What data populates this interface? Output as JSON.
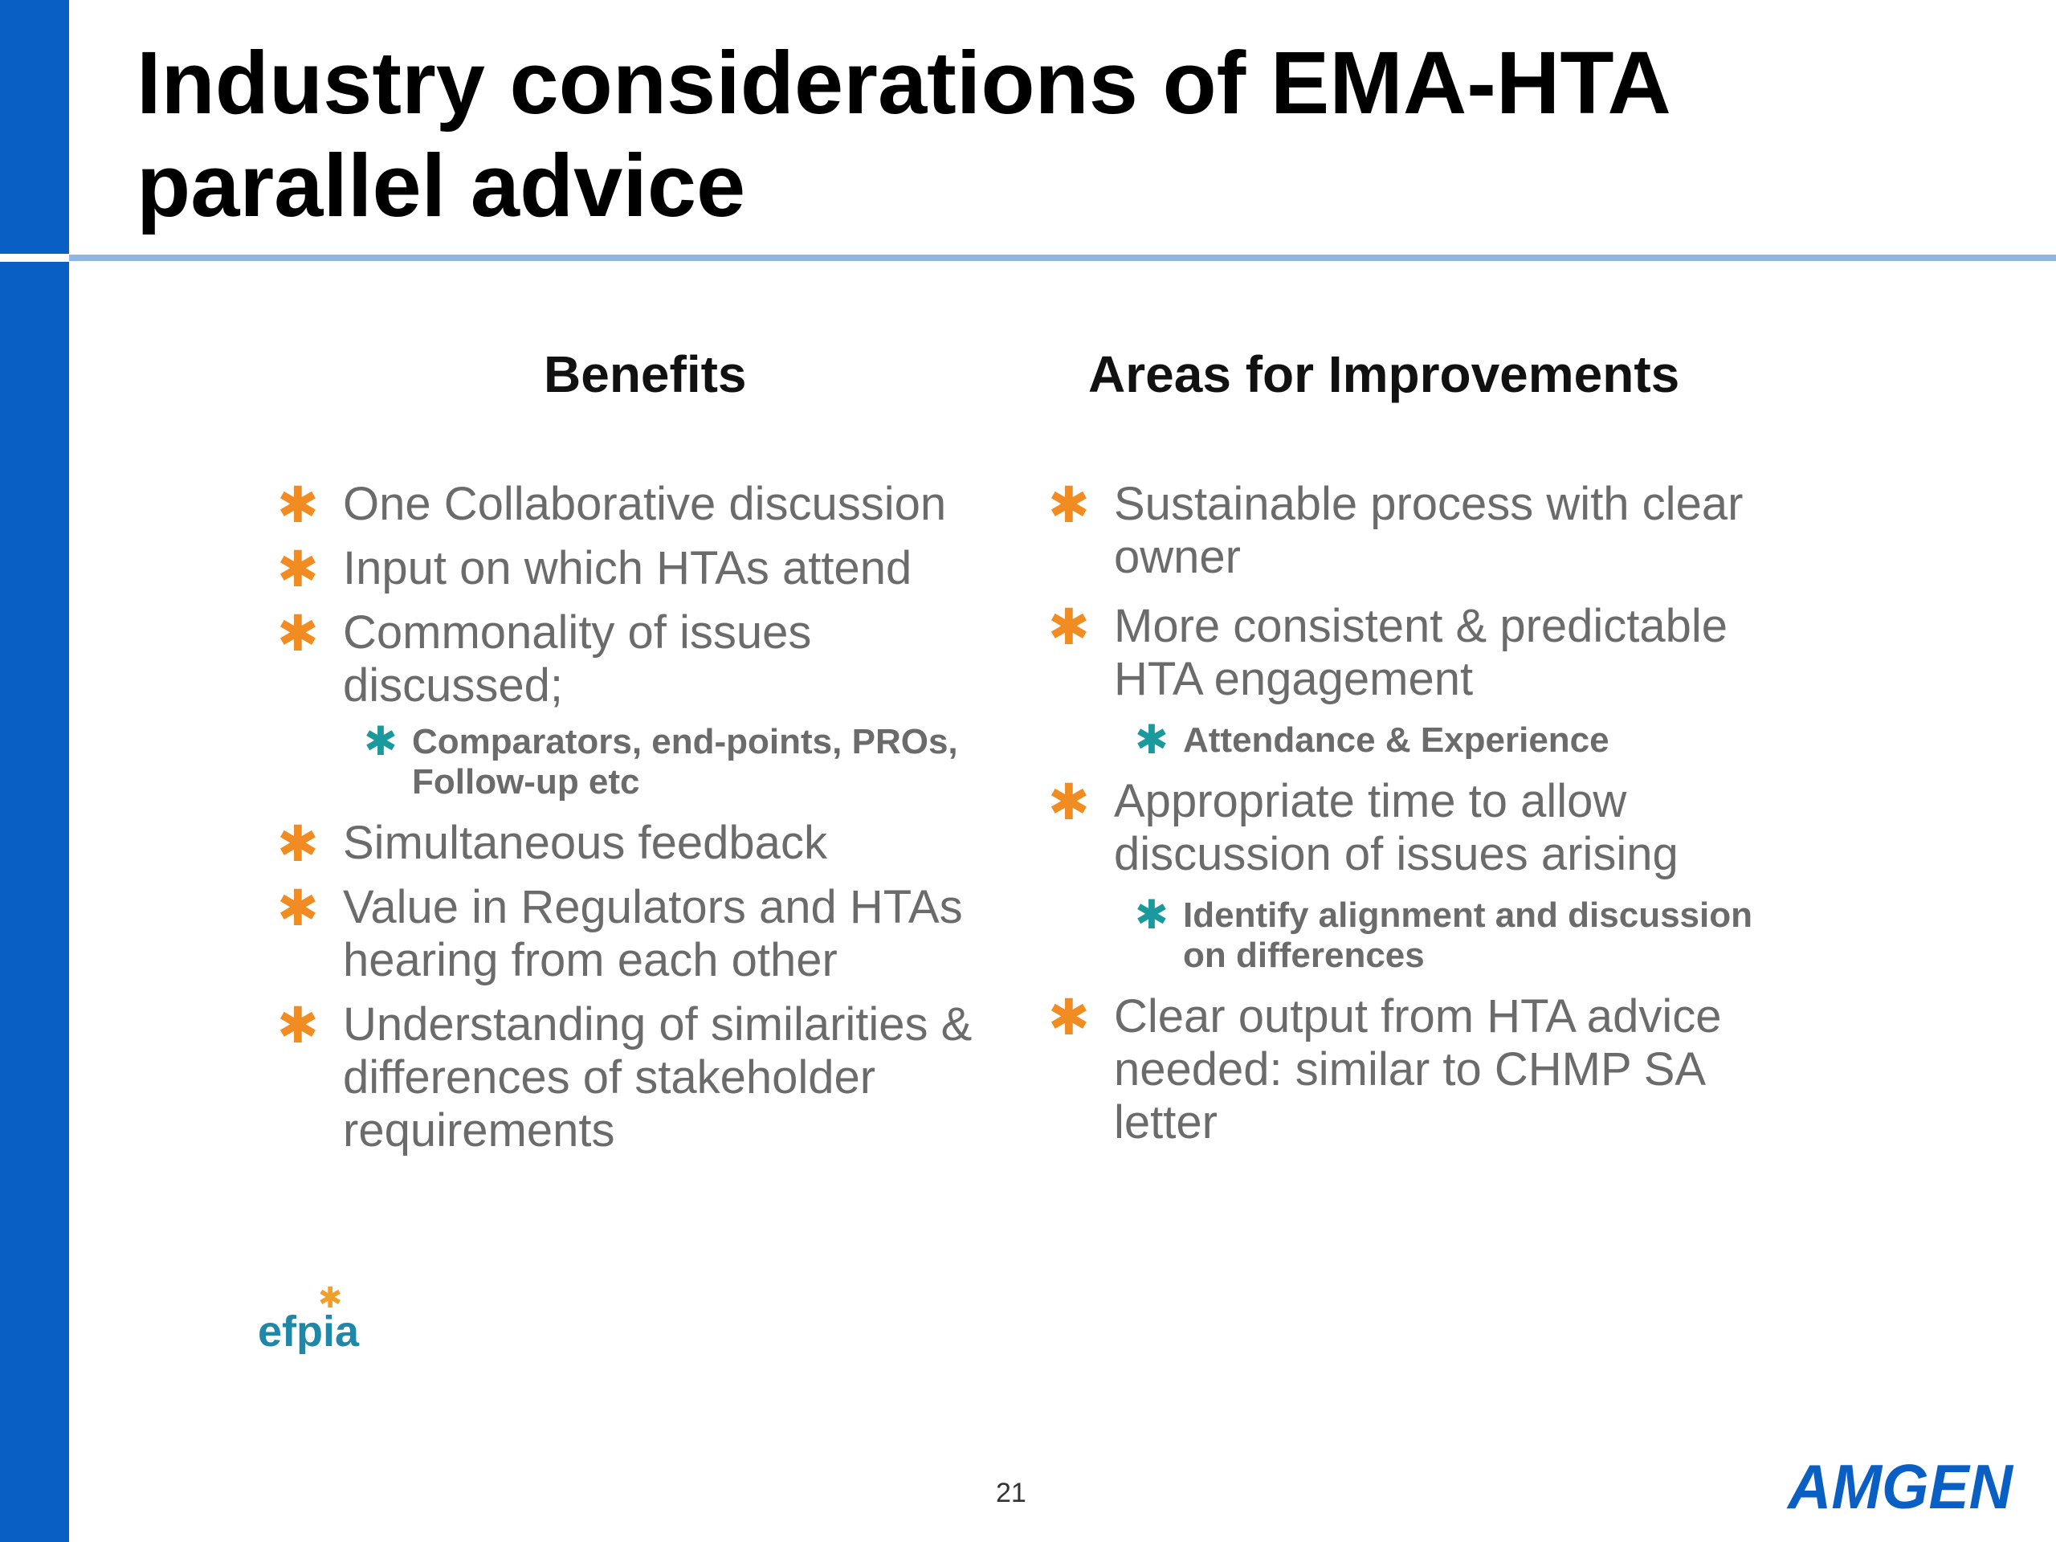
{
  "slide": {
    "title": "Industry considerations of EMA-HTA parallel advice",
    "page_number": "21"
  },
  "benefits": {
    "heading": "Benefits",
    "items": [
      {
        "text": "One Collaborative discussion"
      },
      {
        "text": "Input on which HTAs attend"
      },
      {
        "text": "Commonality of issues discussed;",
        "sub": "Comparators, end-points,  PROs, Follow-up etc"
      },
      {
        "text": "Simultaneous feedback"
      },
      {
        "text": "Value in Regulators and HTAs hearing from each other"
      },
      {
        "text": "Understanding of similarities & differences of stakeholder requirements"
      }
    ]
  },
  "improvements": {
    "heading": "Areas for Improvements",
    "items": [
      {
        "text": "Sustainable process with clear owner"
      },
      {
        "text": "More consistent & predictable HTA engagement",
        "sub": "Attendance & Experience"
      },
      {
        "text": "Appropriate time to allow discussion of issues arising",
        "sub": "Identify alignment and discussion on differences"
      },
      {
        "text": "Clear output from HTA advice needed: similar to CHMP SA letter"
      }
    ]
  },
  "logos": {
    "efpia": "efpia",
    "amgen": "AMGEN"
  },
  "colors": {
    "brand_blue": "#0a5fc4",
    "divider_blue": "#8fb6e0",
    "bullet_orange": "#f08c22",
    "sub_bullet_teal": "#1a9a9c",
    "body_text": "#6b6b6b"
  },
  "icons": {
    "bullet": "asterisk-bullet-icon"
  }
}
